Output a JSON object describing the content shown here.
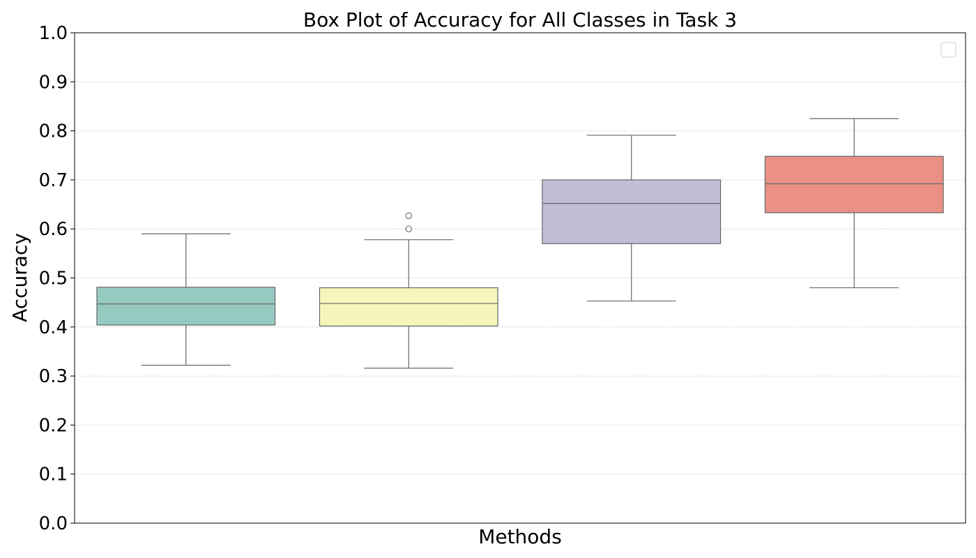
{
  "chart_data": {
    "type": "box",
    "title": "Box Plot of Accuracy for All Classes in Task 3",
    "xlabel": "Methods",
    "ylabel": "Accuracy",
    "ylim": [
      0.0,
      1.0
    ],
    "yticks": [
      "0.0",
      "0.1",
      "0.2",
      "0.3",
      "0.4",
      "0.5",
      "0.6",
      "0.7",
      "0.8",
      "0.9",
      "1.0"
    ],
    "grid": "y, dotted",
    "legend": "top-right (empty)",
    "boxes": [
      {
        "color": "#96cac1",
        "whisker_low": 0.322,
        "q1": 0.404,
        "median": 0.447,
        "q3": 0.481,
        "whisker_high": 0.59,
        "outliers": []
      },
      {
        "color": "#f6f6bc",
        "whisker_low": 0.316,
        "q1": 0.402,
        "median": 0.448,
        "q3": 0.48,
        "whisker_high": 0.578,
        "outliers": [
          0.6,
          0.627
        ]
      },
      {
        "color": "#c1bed6",
        "whisker_low": 0.453,
        "q1": 0.57,
        "median": 0.652,
        "q3": 0.7,
        "whisker_high": 0.791,
        "outliers": []
      },
      {
        "color": "#ea9085",
        "whisker_low": 0.48,
        "q1": 0.633,
        "median": 0.692,
        "q3": 0.748,
        "whisker_high": 0.825,
        "outliers": []
      }
    ]
  }
}
